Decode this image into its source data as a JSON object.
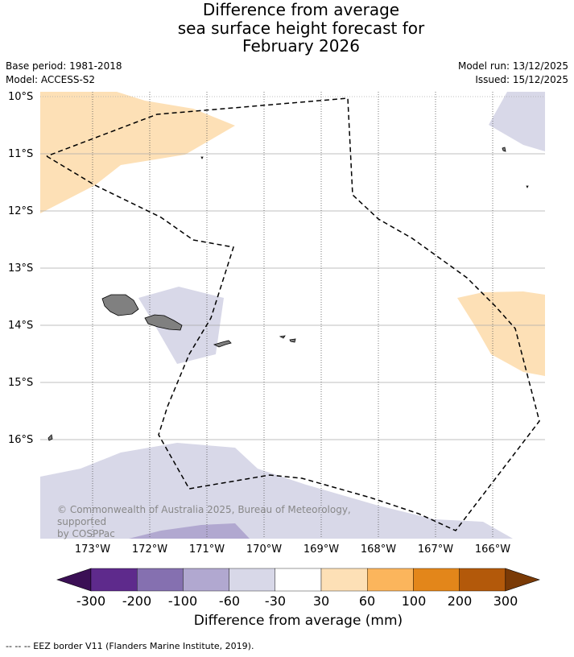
{
  "title": {
    "line1": "Difference from average",
    "line2": "sea surface height forecast for",
    "line3": "February 2026"
  },
  "meta": {
    "base_period": "Base period: 1981-2018",
    "model": "Model: ACCESS-S2",
    "model_run": "Model run: 13/12/2025",
    "issued": "Issued: 15/12/2025"
  },
  "map": {
    "lat_labels": [
      "10°S",
      "11°S",
      "12°S",
      "13°S",
      "14°S",
      "15°S",
      "16°S"
    ],
    "lon_labels": [
      "173°W",
      "172°W",
      "171°W",
      "170°W",
      "169°W",
      "168°W",
      "167°W",
      "166°W"
    ],
    "copyright_line1": "© Commonwealth of Australia 2025, Bureau of Meteorology, supported",
    "copyright_line2": "by COSPPac"
  },
  "colorbar": {
    "ticks": [
      "-300",
      "-200",
      "-100",
      "-60",
      "-30",
      "30",
      "60",
      "100",
      "200",
      "300"
    ],
    "colors": [
      "#3b0f55",
      "#5e2a8c",
      "#8570b0",
      "#b1a8d0",
      "#d8d8e8",
      "#ffffff",
      "#fde0b6",
      "#fbb55c",
      "#e3861a",
      "#b3590a",
      "#7a3a06"
    ],
    "label": "Difference from average (mm)"
  },
  "footnote": "--  --  -- EEZ border V11 (Flanders Marine Institute, 2019).",
  "colors": {
    "positive_light": "#fde0b6",
    "negative_light": "#d8d8e8",
    "negative_mid": "#b1a8d0",
    "land": "#808080"
  }
}
